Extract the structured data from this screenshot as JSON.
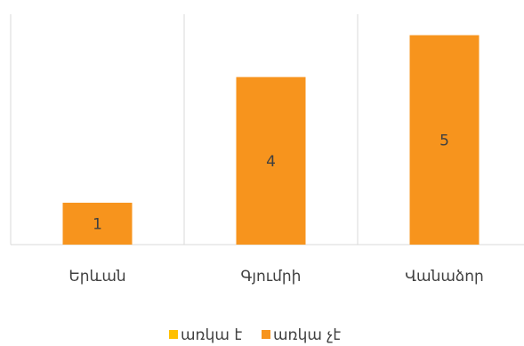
{
  "chart_data": {
    "type": "bar",
    "categories": [
      "Երևան",
      "Գյումրի",
      "Վանաձոր"
    ],
    "series": [
      {
        "name": "առկա է",
        "values": [
          0,
          0,
          0
        ],
        "color": "#FFC000"
      },
      {
        "name": "առկա չէ",
        "values": [
          1,
          4,
          5
        ],
        "color": "#F7941D"
      }
    ],
    "ylim": [
      0,
      5.5
    ],
    "grid": "vertical category separators",
    "legend_position": "bottom",
    "data_labels": true
  }
}
